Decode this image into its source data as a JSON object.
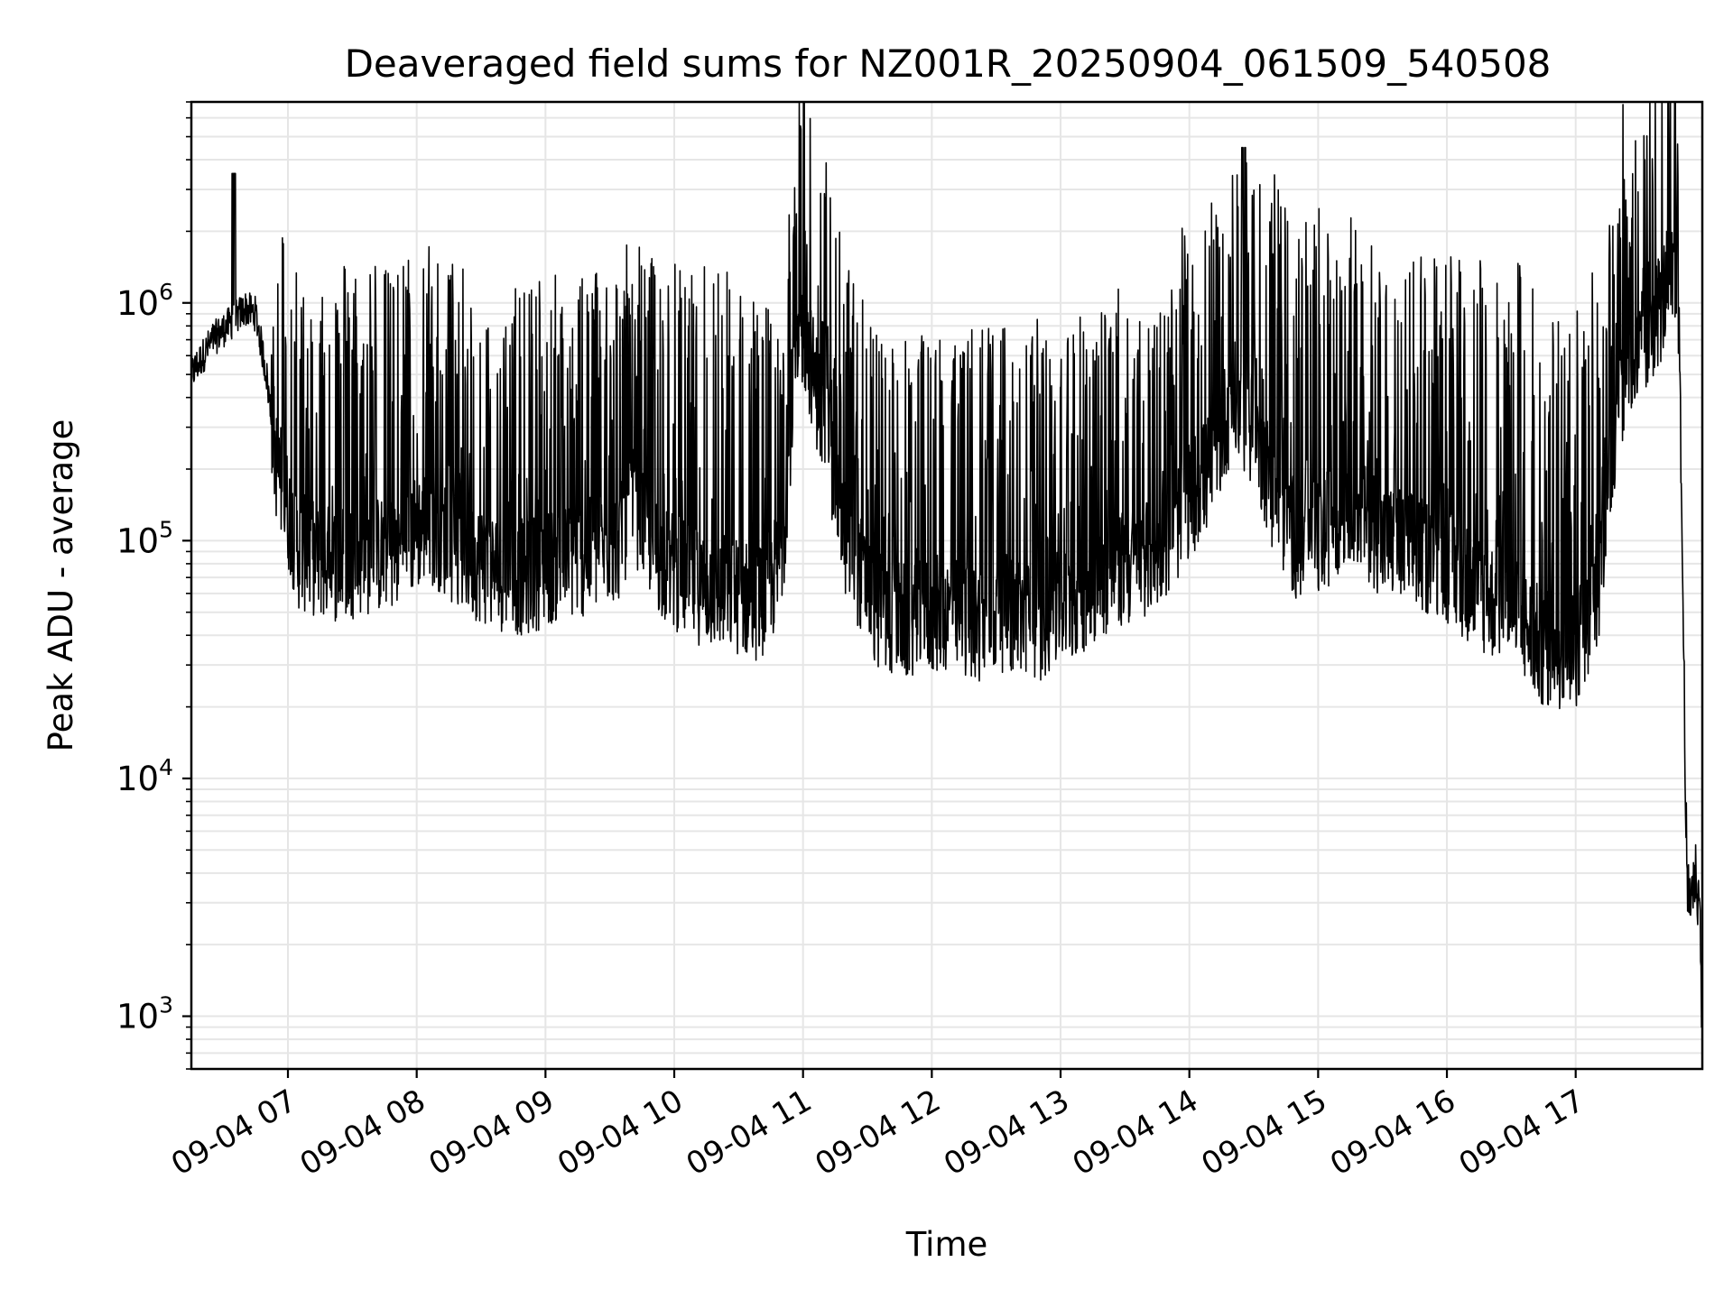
{
  "chart_data": {
    "type": "line",
    "title": "Deaveraged field sums for NZ001R_20250904_061509_540508",
    "xlabel": "Time",
    "ylabel": "Peak ADU - average",
    "yscale": "log",
    "ylim": [
      600,
      7000000
    ],
    "xlim": [
      "2025-09-04 06:15",
      "2025-09-04 17:59"
    ],
    "grid": true,
    "line_color": "#000000",
    "grid_color": "#e6e6e6",
    "y_tick_values": [
      1000,
      10000,
      100000,
      1000000
    ],
    "y_tick_labels": [
      {
        "base": "10",
        "exp": "3"
      },
      {
        "base": "10",
        "exp": "4"
      },
      {
        "base": "10",
        "exp": "5"
      },
      {
        "base": "10",
        "exp": "6"
      }
    ],
    "x_ticks": [
      {
        "t": "2025-09-04 07:00",
        "label": "09-04 07"
      },
      {
        "t": "2025-09-04 08:00",
        "label": "09-04 08"
      },
      {
        "t": "2025-09-04 09:00",
        "label": "09-04 09"
      },
      {
        "t": "2025-09-04 10:00",
        "label": "09-04 10"
      },
      {
        "t": "2025-09-04 11:00",
        "label": "09-04 11"
      },
      {
        "t": "2025-09-04 12:00",
        "label": "09-04 12"
      },
      {
        "t": "2025-09-04 13:00",
        "label": "09-04 13"
      },
      {
        "t": "2025-09-04 14:00",
        "label": "09-04 14"
      },
      {
        "t": "2025-09-04 15:00",
        "label": "09-04 15"
      },
      {
        "t": "2025-09-04 16:00",
        "label": "09-04 16"
      },
      {
        "t": "2025-09-04 17:00",
        "label": "09-04 17"
      }
    ],
    "series": [
      {
        "x": [
          "2025-09-04 06:15",
          "2025-09-04 06:25",
          "2025-09-04 06:35",
          "2025-09-04 06:40",
          "2025-09-04 06:45",
          "2025-09-04 06:50",
          "2025-09-04 06:55",
          "2025-09-04 07:05",
          "2025-09-04 07:20",
          "2025-09-04 07:35",
          "2025-09-04 07:50",
          "2025-09-04 08:05",
          "2025-09-04 08:20",
          "2025-09-04 08:35",
          "2025-09-04 08:50",
          "2025-09-04 09:05",
          "2025-09-04 09:20",
          "2025-09-04 09:35",
          "2025-09-04 09:40",
          "2025-09-04 09:55",
          "2025-09-04 10:10",
          "2025-09-04 10:25",
          "2025-09-04 10:40",
          "2025-09-04 10:50",
          "2025-09-04 10:55",
          "2025-09-04 11:00",
          "2025-09-04 11:10",
          "2025-09-04 11:20",
          "2025-09-04 11:35",
          "2025-09-04 11:50",
          "2025-09-04 12:05",
          "2025-09-04 12:20",
          "2025-09-04 12:35",
          "2025-09-04 12:50",
          "2025-09-04 13:05",
          "2025-09-04 13:20",
          "2025-09-04 13:35",
          "2025-09-04 13:50",
          "2025-09-04 14:00",
          "2025-09-04 14:10",
          "2025-09-04 14:20",
          "2025-09-04 14:30",
          "2025-09-04 14:40",
          "2025-09-04 14:50",
          "2025-09-04 15:00",
          "2025-09-04 15:15",
          "2025-09-04 15:30",
          "2025-09-04 15:45",
          "2025-09-04 16:00",
          "2025-09-04 16:15",
          "2025-09-04 16:30",
          "2025-09-04 16:45",
          "2025-09-04 17:00",
          "2025-09-04 17:10",
          "2025-09-04 17:20",
          "2025-09-04 17:30",
          "2025-09-04 17:40",
          "2025-09-04 17:44",
          "2025-09-04 17:48",
          "2025-09-04 17:52",
          "2025-09-04 17:56",
          "2025-09-04 17:59"
        ],
        "y": [
          500000,
          700000,
          850000,
          950000,
          900000,
          500000,
          200000,
          90000,
          80000,
          85000,
          90000,
          120000,
          90000,
          75000,
          70000,
          80000,
          85000,
          100000,
          150000,
          80000,
          65000,
          60000,
          55000,
          80000,
          400000,
          800000,
          300000,
          100000,
          50000,
          45000,
          50000,
          45000,
          50000,
          45000,
          55000,
          70000,
          80000,
          100000,
          150000,
          200000,
          400000,
          300000,
          150000,
          100000,
          100000,
          150000,
          100000,
          90000,
          80000,
          60000,
          50000,
          35000,
          35000,
          60000,
          400000,
          600000,
          1000000,
          1300000,
          1000000,
          3000,
          4000,
          2000
        ],
        "spikes_upper_envelope": [
          1700000,
          1600000,
          1500000,
          1600000,
          1400000,
          1300000,
          1800000,
          1500000,
          900000,
          850000,
          850000,
          850000,
          950000,
          1000000,
          4500000,
          2500000,
          1600000,
          1600000,
          1500000,
          1500000,
          2000000
        ]
      }
    ]
  }
}
